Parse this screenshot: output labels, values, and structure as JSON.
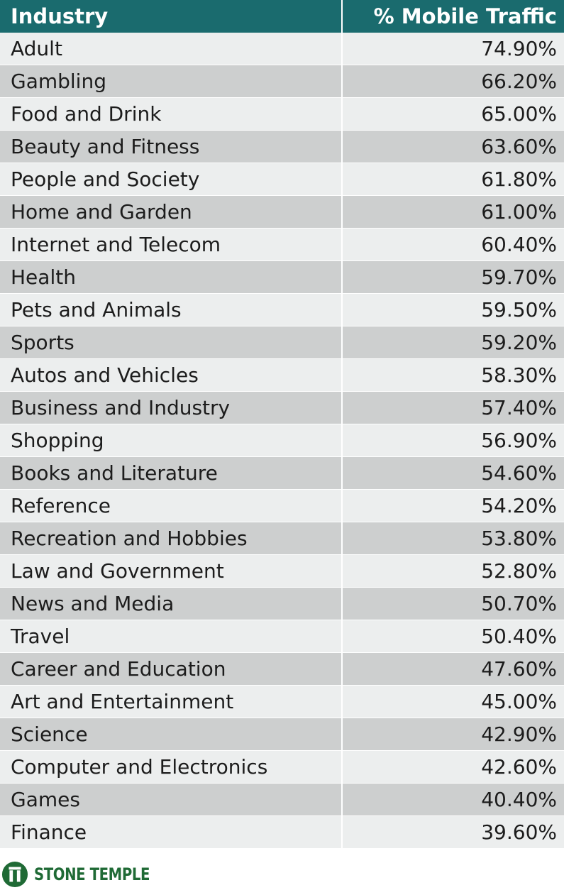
{
  "colors": {
    "header_bg": "#1a6b6e",
    "row_odd": "#eceeee",
    "row_even": "#cdcfcf",
    "brand_green": "#1f6a35"
  },
  "chart_data": {
    "type": "table",
    "columns": [
      "Industry",
      "% Mobile Traffic"
    ],
    "rows": [
      [
        "Adult",
        "74.90%"
      ],
      [
        "Gambling",
        "66.20%"
      ],
      [
        "Food and Drink",
        "65.00%"
      ],
      [
        "Beauty and Fitness",
        "63.60%"
      ],
      [
        "People and Society",
        "61.80%"
      ],
      [
        "Home and Garden",
        "61.00%"
      ],
      [
        "Internet and Telecom",
        "60.40%"
      ],
      [
        "Health",
        "59.70%"
      ],
      [
        "Pets and Animals",
        "59.50%"
      ],
      [
        "Sports",
        "59.20%"
      ],
      [
        "Autos and Vehicles",
        "58.30%"
      ],
      [
        "Business and Industry",
        "57.40%"
      ],
      [
        "Shopping",
        "56.90%"
      ],
      [
        "Books and Literature",
        "54.60%"
      ],
      [
        "Reference",
        "54.20%"
      ],
      [
        "Recreation and Hobbies",
        "53.80%"
      ],
      [
        "Law and Government",
        "52.80%"
      ],
      [
        "News and Media",
        "50.70%"
      ],
      [
        "Travel",
        "50.40%"
      ],
      [
        "Career and Education",
        "47.60%"
      ],
      [
        "Art and Entertainment",
        "45.00%"
      ],
      [
        "Science",
        "42.90%"
      ],
      [
        "Computer and Electronics",
        "42.60%"
      ],
      [
        "Games",
        "40.40%"
      ],
      [
        "Finance",
        "39.60%"
      ]
    ]
  },
  "logo": {
    "text": "STONE TEMPLE",
    "icon": "stone-temple-logo-icon"
  }
}
